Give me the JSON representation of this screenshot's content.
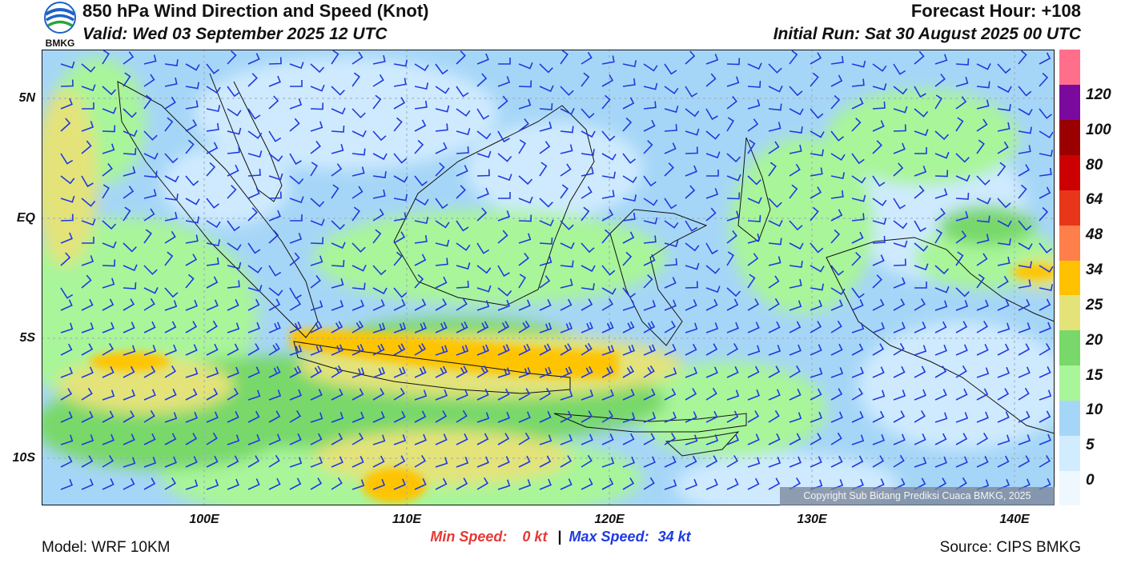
{
  "logo": {
    "name": "bmkg-logo",
    "text": "BMKG"
  },
  "header": {
    "title": "850 hPa Wind Direction and Speed (Knot)",
    "valid": "Valid: Wed 03 September 2025 12 UTC",
    "forecast_hour": "Forecast Hour: +108",
    "initial_run": "Initial Run: Sat 30 August 2025 00 UTC"
  },
  "map": {
    "lat_labels": [
      "5N",
      "EQ",
      "5S",
      "10S"
    ],
    "lon_labels": [
      "100E",
      "110E",
      "120E",
      "130E",
      "140E"
    ],
    "lon_range": [
      92,
      142
    ],
    "lat_range": [
      -12,
      7
    ],
    "barb_color": "#1f3ae0",
    "copyright": "Copyright Sub Bidang Prediksi Cuaca BMKG, 2025",
    "wind_regions": [
      {
        "name": "strong-easterly-jet-java-sea",
        "speed_band": "25-34",
        "color": "#ffc400"
      },
      {
        "name": "indian-ocean-southeasterlies",
        "speed_band": "15-25",
        "color": "#e0e070"
      },
      {
        "name": "equatorial-light-winds",
        "speed_band": "0-10",
        "color": "#cfeaff"
      }
    ]
  },
  "colorbar": {
    "labels": [
      "0",
      "5",
      "10",
      "15",
      "20",
      "25",
      "34",
      "48",
      "64",
      "80",
      "100",
      "120"
    ],
    "colors": [
      "#f0f8ff",
      "#d2ecff",
      "#a6d6f7",
      "#a9f59a",
      "#78d86a",
      "#e3e37a",
      "#ffc200",
      "#ff7f4a",
      "#e8361a",
      "#cc0000",
      "#9b0000",
      "#7a0a9e",
      "#ff6f8c"
    ]
  },
  "footer": {
    "min_label": "Min Speed:",
    "min_value": "0 kt",
    "separator": "|",
    "max_label": "Max Speed:",
    "max_value": "34 kt",
    "model": "Model: WRF 10KM",
    "source": "Source: CIPS BMKG"
  }
}
